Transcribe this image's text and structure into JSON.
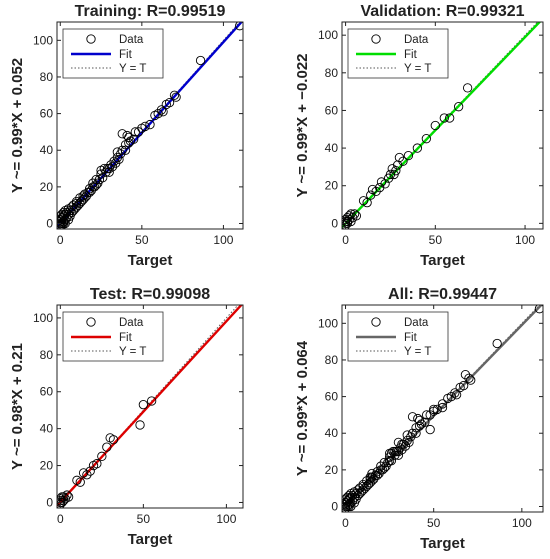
{
  "chart_data": [
    {
      "type": "scatter",
      "title": "Training: R=0.99519",
      "xlabel": "Target",
      "ylabel": "Y ~= 0.99*X + 0.052",
      "xlim": [
        -2,
        112
      ],
      "ylim": [
        -3,
        110
      ],
      "xticks": [
        0,
        50,
        100
      ],
      "yticks": [
        0,
        20,
        40,
        60,
        80,
        100
      ],
      "fit": {
        "slope": 0.99,
        "intercept": 0.052,
        "color": "#0000cc"
      },
      "legend": {
        "position": "top-left",
        "entries": [
          "Data",
          "Fit",
          "Y = T"
        ]
      },
      "points": [
        [
          0,
          0
        ],
        [
          0,
          1
        ],
        [
          0,
          -1
        ],
        [
          0,
          2
        ],
        [
          1,
          0
        ],
        [
          1,
          3
        ],
        [
          1,
          5
        ],
        [
          2,
          1
        ],
        [
          2,
          4
        ],
        [
          2,
          6
        ],
        [
          3,
          2
        ],
        [
          3,
          5
        ],
        [
          3,
          7
        ],
        [
          4,
          3
        ],
        [
          4,
          6
        ],
        [
          5,
          2
        ],
        [
          5,
          5
        ],
        [
          5,
          8
        ],
        [
          6,
          4
        ],
        [
          6,
          7
        ],
        [
          7,
          6
        ],
        [
          7,
          9
        ],
        [
          8,
          7
        ],
        [
          8,
          10
        ],
        [
          9,
          8
        ],
        [
          10,
          9
        ],
        [
          10,
          11
        ],
        [
          10,
          12
        ],
        [
          11,
          10
        ],
        [
          12,
          11
        ],
        [
          12,
          14
        ],
        [
          13,
          12
        ],
        [
          14,
          13
        ],
        [
          14,
          15
        ],
        [
          15,
          14
        ],
        [
          15,
          16
        ],
        [
          16,
          15
        ],
        [
          17,
          17
        ],
        [
          18,
          17
        ],
        [
          18,
          19
        ],
        [
          19,
          18
        ],
        [
          20,
          20
        ],
        [
          20,
          22
        ],
        [
          21,
          20
        ],
        [
          22,
          21
        ],
        [
          22,
          24
        ],
        [
          23,
          22
        ],
        [
          24,
          24
        ],
        [
          25,
          27
        ],
        [
          25,
          29
        ],
        [
          26,
          25
        ],
        [
          27,
          30
        ],
        [
          28,
          28
        ],
        [
          29,
          30
        ],
        [
          30,
          30
        ],
        [
          30,
          28
        ],
        [
          31,
          32
        ],
        [
          32,
          31
        ],
        [
          33,
          34
        ],
        [
          34,
          33
        ],
        [
          35,
          36
        ],
        [
          35,
          39
        ],
        [
          36,
          35
        ],
        [
          37,
          38
        ],
        [
          38,
          40
        ],
        [
          38,
          49
        ],
        [
          40,
          40
        ],
        [
          40,
          43
        ],
        [
          41,
          48
        ],
        [
          42,
          44
        ],
        [
          42,
          47
        ],
        [
          43,
          45
        ],
        [
          45,
          46
        ],
        [
          46,
          50
        ],
        [
          48,
          50
        ],
        [
          50,
          52
        ],
        [
          52,
          53
        ],
        [
          55,
          54
        ],
        [
          58,
          59
        ],
        [
          60,
          60
        ],
        [
          62,
          62
        ],
        [
          63,
          61
        ],
        [
          65,
          65
        ],
        [
          67,
          66
        ],
        [
          70,
          70
        ],
        [
          71,
          69
        ],
        [
          86,
          89
        ],
        [
          110,
          108
        ],
        [
          0,
          4
        ],
        [
          1,
          2
        ],
        [
          2,
          0
        ],
        [
          3,
          0
        ],
        [
          0,
          -2
        ],
        [
          1,
          -1
        ]
      ]
    },
    {
      "type": "scatter",
      "title": "Validation: R=0.99321",
      "xlabel": "Target",
      "ylabel": "Y ~= 0.99*X + −0.022",
      "xlim": [
        -2,
        110
      ],
      "ylim": [
        -3,
        107
      ],
      "xticks": [
        0,
        50,
        100
      ],
      "yticks": [
        0,
        20,
        40,
        60,
        80,
        100
      ],
      "fit": {
        "slope": 0.99,
        "intercept": -0.022,
        "color": "#00dd00"
      },
      "legend": {
        "position": "top-left",
        "entries": [
          "Data",
          "Fit",
          "Y = T"
        ]
      },
      "points": [
        [
          0,
          0
        ],
        [
          0,
          1
        ],
        [
          0,
          2
        ],
        [
          1,
          0
        ],
        [
          1,
          3
        ],
        [
          2,
          2
        ],
        [
          2,
          4
        ],
        [
          3,
          1
        ],
        [
          3,
          5
        ],
        [
          4,
          3
        ],
        [
          5,
          5
        ],
        [
          6,
          4
        ],
        [
          10,
          12
        ],
        [
          12,
          11
        ],
        [
          14,
          15
        ],
        [
          15,
          18
        ],
        [
          17,
          17
        ],
        [
          19,
          19
        ],
        [
          20,
          22
        ],
        [
          22,
          21
        ],
        [
          24,
          24
        ],
        [
          25,
          26
        ],
        [
          26,
          29
        ],
        [
          27,
          26
        ],
        [
          28,
          28
        ],
        [
          29,
          31
        ],
        [
          30,
          35
        ],
        [
          32,
          33
        ],
        [
          35,
          36
        ],
        [
          40,
          40
        ],
        [
          45,
          45
        ],
        [
          50,
          52
        ],
        [
          55,
          56
        ],
        [
          58,
          56
        ],
        [
          63,
          62
        ],
        [
          68,
          72
        ],
        [
          0,
          -1
        ],
        [
          1,
          1
        ]
      ]
    },
    {
      "type": "scatter",
      "title": "Test: R=0.99098",
      "xlabel": "Target",
      "ylabel": "Y ~= 0.98*X + 0.21",
      "xlim": [
        -2,
        110
      ],
      "ylim": [
        -3,
        107
      ],
      "xticks": [
        0,
        50,
        100
      ],
      "yticks": [
        0,
        20,
        40,
        60,
        80,
        100
      ],
      "fit": {
        "slope": 0.98,
        "intercept": 0.21,
        "color": "#dd0000"
      },
      "legend": {
        "position": "top-left",
        "entries": [
          "Data",
          "Fit",
          "Y = T"
        ]
      },
      "points": [
        [
          0,
          0
        ],
        [
          0,
          1
        ],
        [
          0,
          2
        ],
        [
          1,
          0
        ],
        [
          1,
          3
        ],
        [
          2,
          1
        ],
        [
          2,
          3
        ],
        [
          3,
          2
        ],
        [
          4,
          4
        ],
        [
          5,
          3
        ],
        [
          10,
          12
        ],
        [
          12,
          11
        ],
        [
          14,
          16
        ],
        [
          16,
          15
        ],
        [
          18,
          17
        ],
        [
          20,
          20
        ],
        [
          22,
          21
        ],
        [
          25,
          25
        ],
        [
          28,
          30
        ],
        [
          30,
          35
        ],
        [
          32,
          34
        ],
        [
          48,
          42
        ],
        [
          50,
          53
        ],
        [
          55,
          55
        ],
        [
          0,
          -1
        ]
      ]
    },
    {
      "type": "scatter",
      "title": "All: R=0.99447",
      "xlabel": "Target",
      "ylabel": "Y ~= 0.99*X + 0.064",
      "xlim": [
        -2,
        112
      ],
      "ylim": [
        -3,
        110
      ],
      "xticks": [
        0,
        50,
        100
      ],
      "yticks": [
        0,
        20,
        40,
        60,
        80,
        100
      ],
      "fit": {
        "slope": 0.99,
        "intercept": 0.064,
        "color": "#666666"
      },
      "legend": {
        "position": "top-left",
        "entries": [
          "Data",
          "Fit",
          "Y = T"
        ]
      },
      "points": [
        [
          0,
          0
        ],
        [
          0,
          1
        ],
        [
          0,
          -1
        ],
        [
          0,
          2
        ],
        [
          0,
          4
        ],
        [
          1,
          0
        ],
        [
          1,
          2
        ],
        [
          1,
          3
        ],
        [
          1,
          5
        ],
        [
          2,
          0
        ],
        [
          2,
          1
        ],
        [
          2,
          4
        ],
        [
          2,
          6
        ],
        [
          3,
          0
        ],
        [
          3,
          2
        ],
        [
          3,
          5
        ],
        [
          3,
          7
        ],
        [
          4,
          3
        ],
        [
          4,
          6
        ],
        [
          5,
          2
        ],
        [
          5,
          5
        ],
        [
          5,
          8
        ],
        [
          6,
          4
        ],
        [
          6,
          7
        ],
        [
          7,
          6
        ],
        [
          7,
          9
        ],
        [
          8,
          7
        ],
        [
          8,
          10
        ],
        [
          9,
          8
        ],
        [
          10,
          9
        ],
        [
          10,
          11
        ],
        [
          10,
          12
        ],
        [
          11,
          10
        ],
        [
          12,
          11
        ],
        [
          12,
          14
        ],
        [
          13,
          12
        ],
        [
          14,
          13
        ],
        [
          14,
          15
        ],
        [
          14,
          16
        ],
        [
          15,
          14
        ],
        [
          15,
          16
        ],
        [
          15,
          18
        ],
        [
          16,
          15
        ],
        [
          17,
          17
        ],
        [
          18,
          17
        ],
        [
          18,
          19
        ],
        [
          19,
          18
        ],
        [
          20,
          20
        ],
        [
          20,
          22
        ],
        [
          21,
          20
        ],
        [
          22,
          21
        ],
        [
          22,
          24
        ],
        [
          23,
          22
        ],
        [
          24,
          24
        ],
        [
          25,
          25
        ],
        [
          25,
          27
        ],
        [
          25,
          29
        ],
        [
          26,
          25
        ],
        [
          26,
          29
        ],
        [
          27,
          30
        ],
        [
          28,
          28
        ],
        [
          28,
          30
        ],
        [
          29,
          30
        ],
        [
          30,
          30
        ],
        [
          30,
          28
        ],
        [
          30,
          35
        ],
        [
          31,
          32
        ],
        [
          32,
          31
        ],
        [
          32,
          34
        ],
        [
          33,
          34
        ],
        [
          34,
          33
        ],
        [
          35,
          36
        ],
        [
          35,
          39
        ],
        [
          36,
          35
        ],
        [
          37,
          38
        ],
        [
          38,
          40
        ],
        [
          38,
          49
        ],
        [
          40,
          40
        ],
        [
          40,
          43
        ],
        [
          41,
          48
        ],
        [
          42,
          44
        ],
        [
          42,
          47
        ],
        [
          43,
          45
        ],
        [
          45,
          46
        ],
        [
          46,
          50
        ],
        [
          48,
          42
        ],
        [
          48,
          50
        ],
        [
          50,
          52
        ],
        [
          50,
          53
        ],
        [
          52,
          53
        ],
        [
          55,
          54
        ],
        [
          55,
          56
        ],
        [
          58,
          59
        ],
        [
          60,
          60
        ],
        [
          62,
          62
        ],
        [
          63,
          61
        ],
        [
          65,
          65
        ],
        [
          67,
          66
        ],
        [
          68,
          72
        ],
        [
          70,
          70
        ],
        [
          71,
          69
        ],
        [
          86,
          89
        ],
        [
          110,
          108
        ]
      ]
    }
  ]
}
